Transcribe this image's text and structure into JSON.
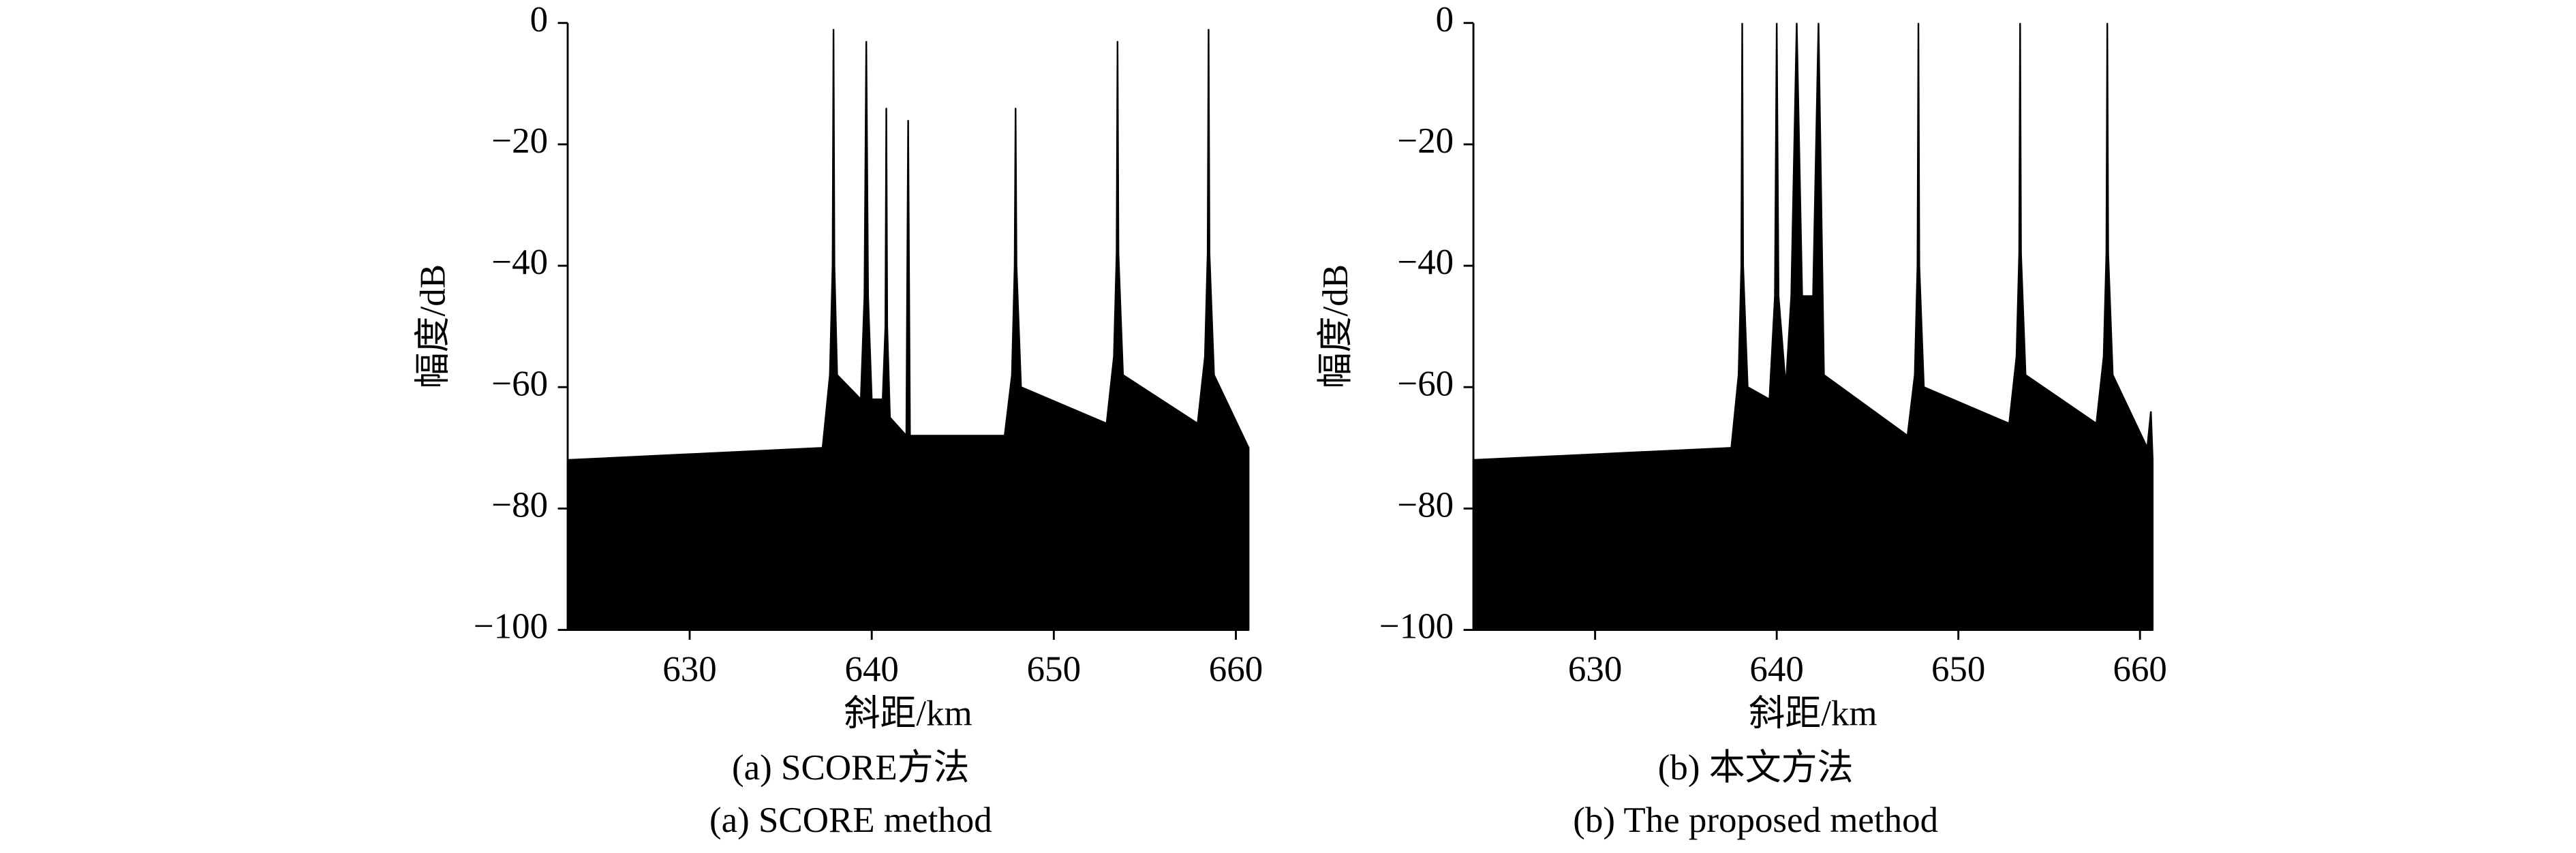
{
  "chart_data": [
    {
      "type": "area",
      "color": "#000000",
      "xlabel": "斜距/km",
      "ylabel": "幅度/dB",
      "caption": "(a) SCORE方法",
      "caption_en": "(a) SCORE method",
      "xlim": [
        623.3,
        660.7
      ],
      "ylim": [
        -100,
        0
      ],
      "xticks": [
        630,
        640,
        650,
        660
      ],
      "yticks": [
        {
          "value": -100,
          "label": "−100"
        },
        {
          "value": -80,
          "label": "−80"
        },
        {
          "value": -60,
          "label": "−60"
        },
        {
          "value": -40,
          "label": "−40"
        },
        {
          "value": -20,
          "label": "−20"
        },
        0
      ],
      "x": [
        623.3,
        637.3,
        637.7,
        637.85,
        637.9,
        637.95,
        638.1,
        639.4,
        639.6,
        639.7,
        639.8,
        640.0,
        640.6,
        640.75,
        640.8,
        640.85,
        641.0,
        641.9,
        642.0,
        642.1,
        647.3,
        647.7,
        647.85,
        647.9,
        647.95,
        648.2,
        652.9,
        653.3,
        653.45,
        653.5,
        653.55,
        653.8,
        657.9,
        658.3,
        658.45,
        658.5,
        658.55,
        658.8,
        660.7
      ],
      "values": [
        -72,
        -70,
        -58,
        -40,
        -1,
        -40,
        -58,
        -62,
        -45,
        -3,
        -45,
        -62,
        -62,
        -50,
        -14,
        -50,
        -65,
        -68,
        -16,
        -68,
        -68,
        -58,
        -40,
        -14,
        -40,
        -60,
        -66,
        -55,
        -38,
        -3,
        -38,
        -58,
        -66,
        -55,
        -38,
        -1,
        -38,
        -58,
        -70
      ]
    },
    {
      "type": "area",
      "color": "#000000",
      "xlabel": "斜距/km",
      "ylabel": "幅度/dB",
      "caption": "(b) 本文方法",
      "caption_en": "(b) The proposed method",
      "xlim": [
        623.3,
        660.7
      ],
      "ylim": [
        -100,
        0
      ],
      "xticks": [
        630,
        640,
        650,
        660
      ],
      "yticks": [
        {
          "value": -100,
          "label": "−100"
        },
        {
          "value": -80,
          "label": "−80"
        },
        {
          "value": -60,
          "label": "−60"
        },
        {
          "value": -40,
          "label": "−40"
        },
        {
          "value": -20,
          "label": "−20"
        },
        0
      ],
      "x": [
        623.3,
        637.5,
        637.9,
        638.05,
        638.1,
        638.15,
        638.4,
        639.6,
        639.9,
        640.0,
        640.1,
        640.5,
        640.8,
        641.1,
        641.4,
        642.0,
        642.3,
        642.6,
        647.2,
        647.6,
        647.75,
        647.8,
        647.85,
        648.1,
        652.8,
        653.2,
        653.35,
        653.4,
        653.45,
        653.7,
        657.6,
        658.0,
        658.15,
        658.2,
        658.25,
        658.5,
        660.4,
        660.6,
        660.7
      ],
      "values": [
        -72,
        -70,
        -58,
        -40,
        0,
        -40,
        -60,
        -62,
        -45,
        0,
        -45,
        -60,
        -45,
        0,
        -45,
        -45,
        0,
        -58,
        -68,
        -58,
        -40,
        0,
        -40,
        -60,
        -66,
        -55,
        -38,
        0,
        -38,
        -58,
        -66,
        -55,
        -38,
        0,
        -38,
        -58,
        -70,
        -64,
        -72
      ]
    }
  ]
}
